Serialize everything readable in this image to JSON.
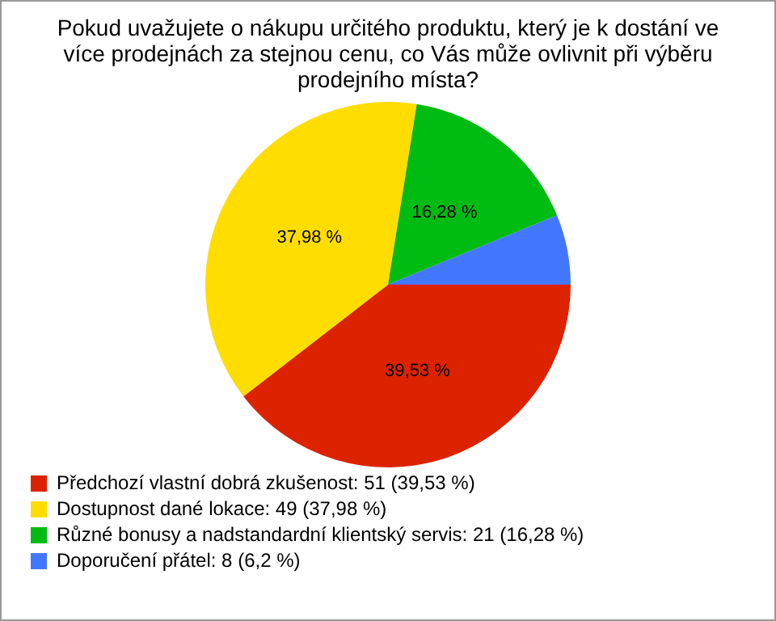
{
  "chart_data": {
    "type": "pie",
    "title": "Pokud uvažujete o nákupu určitého produktu, který je k dostání ve více prodejnách za stejnou cenu, co Vás může ovlivnit při výběru prodejního místa?",
    "categories": [
      "Předchozí vlastní dobrá zkušenost: 51 (39,53 %)",
      "Dostupnost dané lokace: 49 (37,98 %)",
      "Různé bonusy a nadstandardní klientský servis: 21 (16,28 %)",
      "Doporučení přátel: 8 (6,2 %)"
    ],
    "values": [
      39.53,
      37.98,
      16.28,
      6.2
    ],
    "colors": [
      "#dd2200",
      "#ffdd00",
      "#00bb11",
      "#4477ff"
    ],
    "value_labels": [
      "39,53 %",
      "37,98 %",
      "16,28 %",
      null
    ],
    "legend": "bottom"
  }
}
